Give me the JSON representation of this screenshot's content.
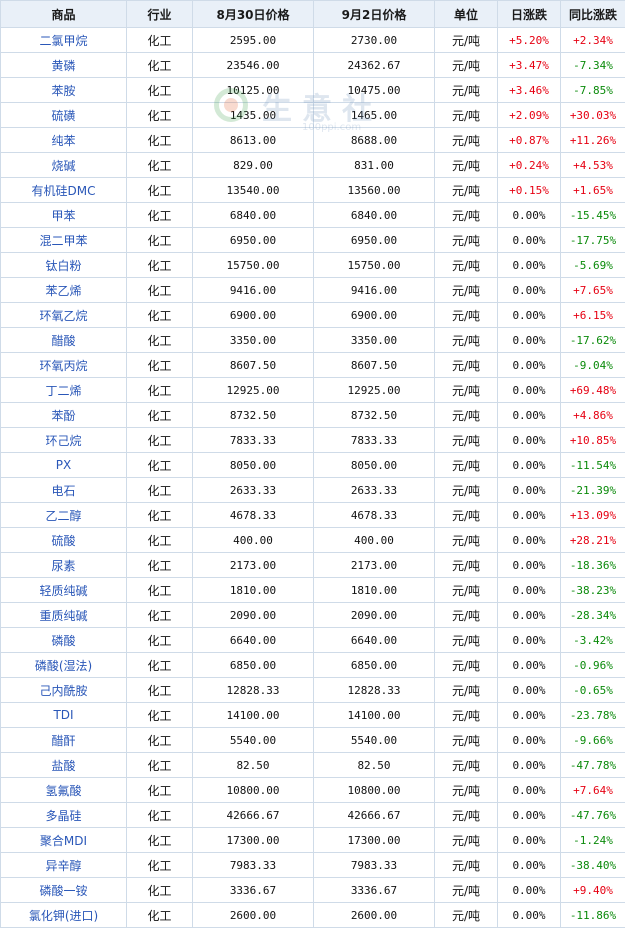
{
  "headers": [
    "商品",
    "行业",
    "8月30日价格",
    "9月2日价格",
    "单位",
    "日涨跌",
    "同比涨跌"
  ],
  "watermark": {
    "text": "生意社",
    "url": "100ppi.com",
    "icon": "ring-logo-icon"
  },
  "colors": {
    "up": "#e60012",
    "down": "#0a8a0a",
    "name": "#2a57b8",
    "header_bg": "#e9f0f8"
  },
  "rows": [
    {
      "name": "二氯甲烷",
      "industry": "化工",
      "price_a": "2595.00",
      "price_b": "2730.00",
      "unit": "元/吨",
      "daily": "+5.20%",
      "yoy": "+2.34%"
    },
    {
      "name": "黄磷",
      "industry": "化工",
      "price_a": "23546.00",
      "price_b": "24362.67",
      "unit": "元/吨",
      "daily": "+3.47%",
      "yoy": "-7.34%"
    },
    {
      "name": "苯胺",
      "industry": "化工",
      "price_a": "10125.00",
      "price_b": "10475.00",
      "unit": "元/吨",
      "daily": "+3.46%",
      "yoy": "-7.85%"
    },
    {
      "name": "硫磺",
      "industry": "化工",
      "price_a": "1435.00",
      "price_b": "1465.00",
      "unit": "元/吨",
      "daily": "+2.09%",
      "yoy": "+30.03%"
    },
    {
      "name": "纯苯",
      "industry": "化工",
      "price_a": "8613.00",
      "price_b": "8688.00",
      "unit": "元/吨",
      "daily": "+0.87%",
      "yoy": "+11.26%"
    },
    {
      "name": "烧碱",
      "industry": "化工",
      "price_a": "829.00",
      "price_b": "831.00",
      "unit": "元/吨",
      "daily": "+0.24%",
      "yoy": "+4.53%"
    },
    {
      "name": "有机硅DMC",
      "industry": "化工",
      "price_a": "13540.00",
      "price_b": "13560.00",
      "unit": "元/吨",
      "daily": "+0.15%",
      "yoy": "+1.65%"
    },
    {
      "name": "甲苯",
      "industry": "化工",
      "price_a": "6840.00",
      "price_b": "6840.00",
      "unit": "元/吨",
      "daily": "0.00%",
      "yoy": "-15.45%"
    },
    {
      "name": "混二甲苯",
      "industry": "化工",
      "price_a": "6950.00",
      "price_b": "6950.00",
      "unit": "元/吨",
      "daily": "0.00%",
      "yoy": "-17.75%"
    },
    {
      "name": "钛白粉",
      "industry": "化工",
      "price_a": "15750.00",
      "price_b": "15750.00",
      "unit": "元/吨",
      "daily": "0.00%",
      "yoy": "-5.69%"
    },
    {
      "name": "苯乙烯",
      "industry": "化工",
      "price_a": "9416.00",
      "price_b": "9416.00",
      "unit": "元/吨",
      "daily": "0.00%",
      "yoy": "+7.65%"
    },
    {
      "name": "环氧乙烷",
      "industry": "化工",
      "price_a": "6900.00",
      "price_b": "6900.00",
      "unit": "元/吨",
      "daily": "0.00%",
      "yoy": "+6.15%"
    },
    {
      "name": "醋酸",
      "industry": "化工",
      "price_a": "3350.00",
      "price_b": "3350.00",
      "unit": "元/吨",
      "daily": "0.00%",
      "yoy": "-17.62%"
    },
    {
      "name": "环氧丙烷",
      "industry": "化工",
      "price_a": "8607.50",
      "price_b": "8607.50",
      "unit": "元/吨",
      "daily": "0.00%",
      "yoy": "-9.04%"
    },
    {
      "name": "丁二烯",
      "industry": "化工",
      "price_a": "12925.00",
      "price_b": "12925.00",
      "unit": "元/吨",
      "daily": "0.00%",
      "yoy": "+69.48%"
    },
    {
      "name": "苯酚",
      "industry": "化工",
      "price_a": "8732.50",
      "price_b": "8732.50",
      "unit": "元/吨",
      "daily": "0.00%",
      "yoy": "+4.86%"
    },
    {
      "name": "环己烷",
      "industry": "化工",
      "price_a": "7833.33",
      "price_b": "7833.33",
      "unit": "元/吨",
      "daily": "0.00%",
      "yoy": "+10.85%"
    },
    {
      "name": "PX",
      "industry": "化工",
      "price_a": "8050.00",
      "price_b": "8050.00",
      "unit": "元/吨",
      "daily": "0.00%",
      "yoy": "-11.54%"
    },
    {
      "name": "电石",
      "industry": "化工",
      "price_a": "2633.33",
      "price_b": "2633.33",
      "unit": "元/吨",
      "daily": "0.00%",
      "yoy": "-21.39%"
    },
    {
      "name": "乙二醇",
      "industry": "化工",
      "price_a": "4678.33",
      "price_b": "4678.33",
      "unit": "元/吨",
      "daily": "0.00%",
      "yoy": "+13.09%"
    },
    {
      "name": "硫酸",
      "industry": "化工",
      "price_a": "400.00",
      "price_b": "400.00",
      "unit": "元/吨",
      "daily": "0.00%",
      "yoy": "+28.21%"
    },
    {
      "name": "尿素",
      "industry": "化工",
      "price_a": "2173.00",
      "price_b": "2173.00",
      "unit": "元/吨",
      "daily": "0.00%",
      "yoy": "-18.36%"
    },
    {
      "name": "轻质纯碱",
      "industry": "化工",
      "price_a": "1810.00",
      "price_b": "1810.00",
      "unit": "元/吨",
      "daily": "0.00%",
      "yoy": "-38.23%"
    },
    {
      "name": "重质纯碱",
      "industry": "化工",
      "price_a": "2090.00",
      "price_b": "2090.00",
      "unit": "元/吨",
      "daily": "0.00%",
      "yoy": "-28.34%"
    },
    {
      "name": "磷酸",
      "industry": "化工",
      "price_a": "6640.00",
      "price_b": "6640.00",
      "unit": "元/吨",
      "daily": "0.00%",
      "yoy": "-3.42%"
    },
    {
      "name": "磷酸(湿法)",
      "industry": "化工",
      "price_a": "6850.00",
      "price_b": "6850.00",
      "unit": "元/吨",
      "daily": "0.00%",
      "yoy": "-0.96%"
    },
    {
      "name": "己内酰胺",
      "industry": "化工",
      "price_a": "12828.33",
      "price_b": "12828.33",
      "unit": "元/吨",
      "daily": "0.00%",
      "yoy": "-0.65%"
    },
    {
      "name": "TDI",
      "industry": "化工",
      "price_a": "14100.00",
      "price_b": "14100.00",
      "unit": "元/吨",
      "daily": "0.00%",
      "yoy": "-23.78%"
    },
    {
      "name": "醋酐",
      "industry": "化工",
      "price_a": "5540.00",
      "price_b": "5540.00",
      "unit": "元/吨",
      "daily": "0.00%",
      "yoy": "-9.66%"
    },
    {
      "name": "盐酸",
      "industry": "化工",
      "price_a": "82.50",
      "price_b": "82.50",
      "unit": "元/吨",
      "daily": "0.00%",
      "yoy": "-47.78%"
    },
    {
      "name": "氢氟酸",
      "industry": "化工",
      "price_a": "10800.00",
      "price_b": "10800.00",
      "unit": "元/吨",
      "daily": "0.00%",
      "yoy": "+7.64%"
    },
    {
      "name": "多晶硅",
      "industry": "化工",
      "price_a": "42666.67",
      "price_b": "42666.67",
      "unit": "元/吨",
      "daily": "0.00%",
      "yoy": "-47.76%"
    },
    {
      "name": "聚合MDI",
      "industry": "化工",
      "price_a": "17300.00",
      "price_b": "17300.00",
      "unit": "元/吨",
      "daily": "0.00%",
      "yoy": "-1.24%"
    },
    {
      "name": "异辛醇",
      "industry": "化工",
      "price_a": "7983.33",
      "price_b": "7983.33",
      "unit": "元/吨",
      "daily": "0.00%",
      "yoy": "-38.40%"
    },
    {
      "name": "磷酸一铵",
      "industry": "化工",
      "price_a": "3336.67",
      "price_b": "3336.67",
      "unit": "元/吨",
      "daily": "0.00%",
      "yoy": "+9.40%"
    },
    {
      "name": "氯化钾(进口)",
      "industry": "化工",
      "price_a": "2600.00",
      "price_b": "2600.00",
      "unit": "元/吨",
      "daily": "0.00%",
      "yoy": "-11.86%"
    }
  ]
}
